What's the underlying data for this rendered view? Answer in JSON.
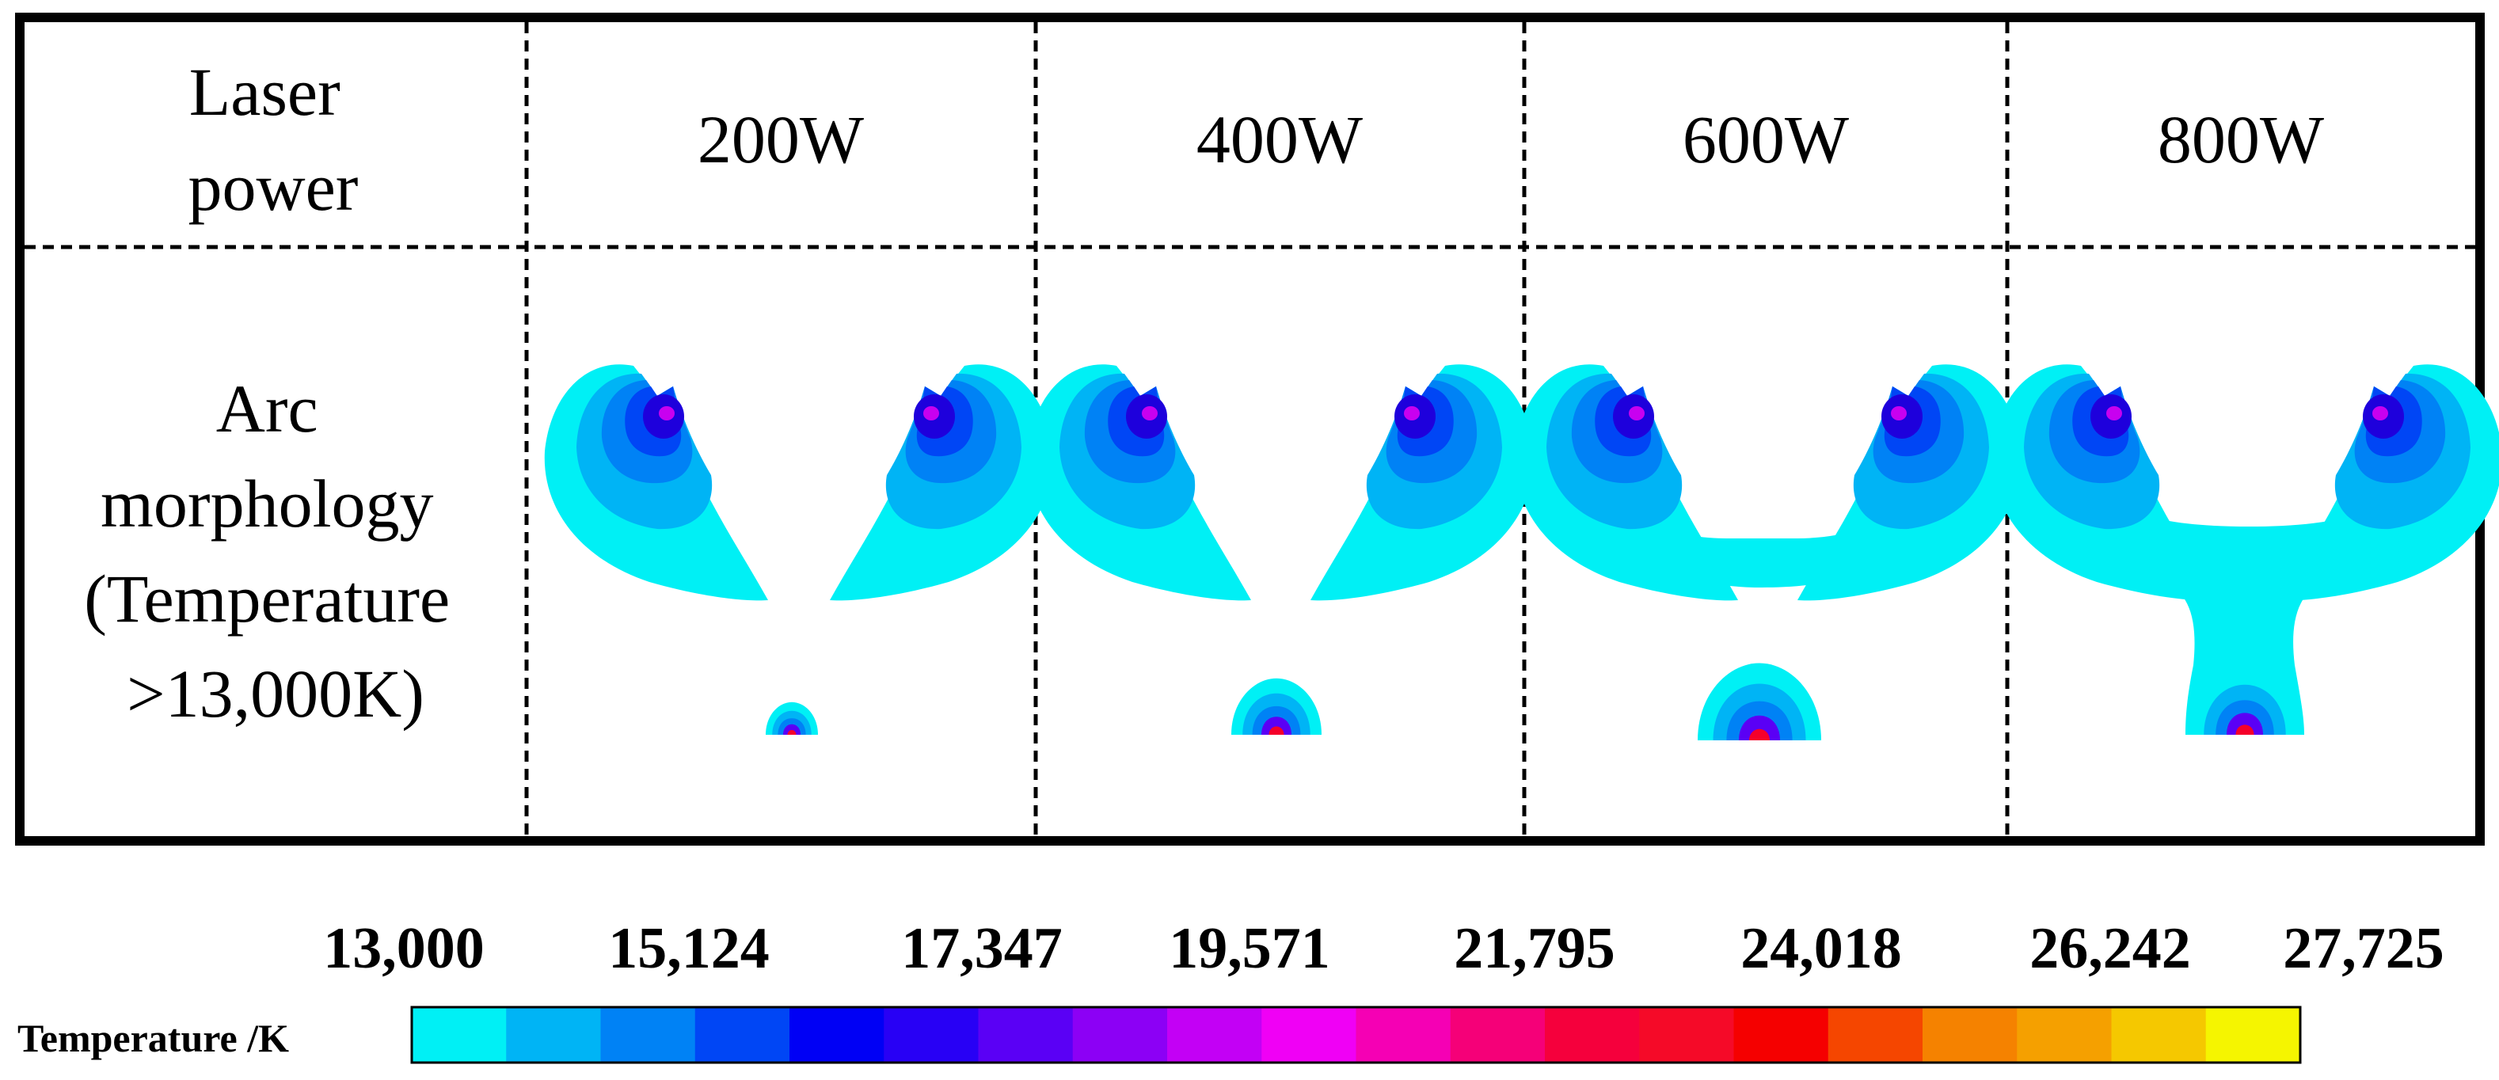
{
  "table": {
    "header_label": [
      "Laser",
      "power"
    ],
    "powers": [
      "200W",
      "400W",
      "600W",
      "800W"
    ],
    "row_label": [
      "Arc",
      "morphology",
      "(Temperature",
      ">13,000K)"
    ]
  },
  "legend": {
    "label": "Temperature /K",
    "ticks": [
      "13,000",
      "15,124",
      "17,347",
      "19,571",
      "21,795",
      "24,018",
      "26,242",
      "27,725"
    ],
    "colors": [
      "#00F0F5",
      "#00B4F5",
      "#0082F5",
      "#0046F5",
      "#0000F5",
      "#2800F5",
      "#5A00F5",
      "#8C00F5",
      "#C300F5",
      "#F000F5",
      "#F500B4",
      "#F50078",
      "#F5003C",
      "#F50A28",
      "#F50000",
      "#F54600",
      "#F58200",
      "#F5A000",
      "#F5C800",
      "#F5F500"
    ]
  },
  "colors": {
    "cyan": "#00F0F5",
    "band1": "#00B4F5",
    "band2": "#0082F5",
    "band3": "#0046F5",
    "band4": "#1400DC",
    "magenta": "#C800F0",
    "red": "#F5002A",
    "orange": "#F58C00"
  }
}
